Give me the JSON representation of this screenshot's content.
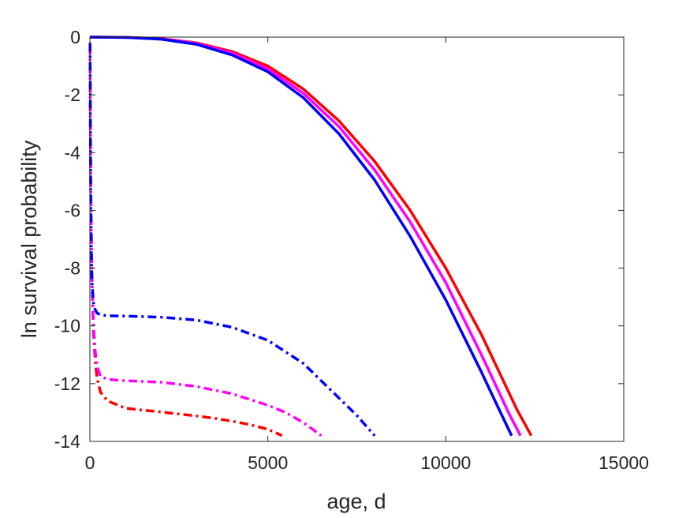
{
  "chart_data": {
    "type": "line",
    "xlabel": "age, d",
    "ylabel": "ln survival probability",
    "xlim": [
      0,
      15000
    ],
    "ylim": [
      -14,
      0
    ],
    "xticks": [
      0,
      5000,
      10000,
      15000
    ],
    "yticks": [
      0,
      -2,
      -4,
      -6,
      -8,
      -10,
      -12,
      -14
    ],
    "grid": false,
    "box": true,
    "colors": {
      "red": "#ff0000",
      "magenta": "#ff00ff",
      "blue": "#0000ff"
    },
    "series": [
      {
        "color": "#ff0000",
        "style": "solid",
        "x": [
          0,
          1000,
          2000,
          3000,
          4000,
          5000,
          6000,
          7000,
          8000,
          9000,
          10000,
          11000,
          12000,
          12400
        ],
        "y": [
          0,
          -0.01,
          -0.05,
          -0.2,
          -0.5,
          -1.0,
          -1.8,
          -2.9,
          -4.3,
          -6.0,
          -8.0,
          -10.3,
          -12.9,
          -13.8
        ]
      },
      {
        "color": "#ff00ff",
        "style": "solid",
        "x": [
          0,
          1000,
          2000,
          3000,
          4000,
          5000,
          6000,
          7000,
          8000,
          9000,
          10000,
          11000,
          11800,
          12100
        ],
        "y": [
          0,
          -0.01,
          -0.06,
          -0.22,
          -0.55,
          -1.1,
          -1.95,
          -3.1,
          -4.6,
          -6.4,
          -8.5,
          -11.0,
          -13.1,
          -13.8
        ]
      },
      {
        "color": "#0000ff",
        "style": "solid",
        "x": [
          0,
          1000,
          2000,
          3000,
          4000,
          5000,
          6000,
          7000,
          8000,
          9000,
          10000,
          11000,
          11500,
          11850
        ],
        "y": [
          0,
          -0.01,
          -0.07,
          -0.25,
          -0.62,
          -1.2,
          -2.1,
          -3.35,
          -4.95,
          -6.9,
          -9.1,
          -11.6,
          -12.9,
          -13.8
        ]
      },
      {
        "color": "#ff0000",
        "style": "dashdot",
        "x": [
          5,
          10,
          30,
          60,
          100,
          150,
          200,
          300,
          500,
          1000,
          1500,
          2000,
          2500,
          3000,
          3500,
          4000,
          4500,
          5000,
          5400
        ],
        "y": [
          -0.3,
          -2.5,
          -6.0,
          -8.5,
          -10.2,
          -11.2,
          -11.8,
          -12.3,
          -12.6,
          -12.85,
          -12.92,
          -12.98,
          -13.05,
          -13.12,
          -13.2,
          -13.3,
          -13.42,
          -13.58,
          -13.8
        ]
      },
      {
        "color": "#ff00ff",
        "style": "dashdot",
        "x": [
          5,
          10,
          30,
          60,
          100,
          150,
          200,
          300,
          500,
          1000,
          2000,
          3000,
          4000,
          5000,
          5500,
          6000,
          6500
        ],
        "y": [
          -0.3,
          -2.5,
          -6.0,
          -8.5,
          -10.0,
          -10.9,
          -11.4,
          -11.75,
          -11.85,
          -11.9,
          -11.95,
          -12.1,
          -12.35,
          -12.75,
          -13.0,
          -13.35,
          -13.8
        ]
      },
      {
        "color": "#0000ff",
        "style": "dashdot",
        "x": [
          5,
          10,
          20,
          40,
          60,
          100,
          150,
          200,
          300,
          500,
          1000,
          2000,
          3000,
          4000,
          5000,
          6000,
          7000,
          7500,
          8000
        ],
        "y": [
          -0.2,
          -2.0,
          -5.0,
          -7.5,
          -8.5,
          -9.2,
          -9.45,
          -9.55,
          -9.62,
          -9.65,
          -9.66,
          -9.7,
          -9.8,
          -10.05,
          -10.5,
          -11.3,
          -12.5,
          -13.1,
          -13.8
        ]
      }
    ]
  }
}
